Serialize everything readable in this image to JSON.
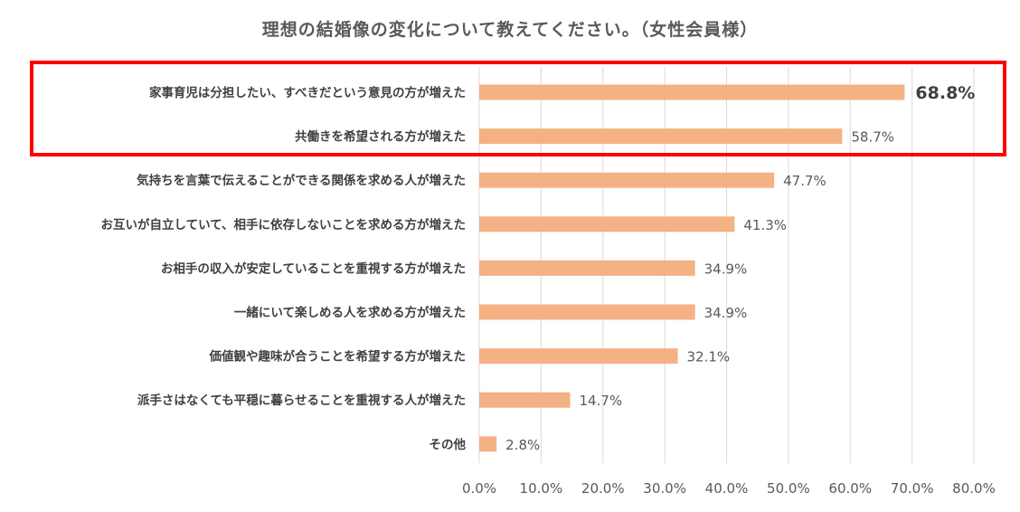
{
  "chart_data": {
    "type": "bar",
    "orientation": "horizontal",
    "title": "理想の結婚像の変化について教えてください。（女性会員様）",
    "categories": [
      "家事育児は分担したい、すべきだという意見の方が増えた",
      "共働きを希望される方が増えた",
      "気持ちを言葉で伝えることができる関係を求める人が増えた",
      "お互いが自立していて、相手に依存しないことを求める方が増えた",
      "お相手の収入が安定していることを重視する方が増えた",
      "一緒にいて楽しめる人を求める方が増えた",
      "価値観や趣味が合うことを希望する方が増えた",
      "派手さはなくても平穏に暮らせることを重視する人が増えた",
      "その他"
    ],
    "values": [
      68.8,
      58.7,
      47.7,
      41.3,
      34.9,
      34.9,
      32.1,
      14.7,
      2.8
    ],
    "data_labels": [
      "68.8%",
      "58.7%",
      "47.7%",
      "41.3%",
      "34.9%",
      "34.9%",
      "32.1%",
      "14.7%",
      "2.8%"
    ],
    "xlim": [
      0,
      80
    ],
    "x_ticks": [
      "0.0%",
      "10.0%",
      "20.0%",
      "30.0%",
      "40.0%",
      "50.0%",
      "60.0%",
      "70.0%",
      "80.0%"
    ],
    "grid": true,
    "bar_color": "#f4b183",
    "highlight_color": "#ff0000",
    "highlighted_categories": 2,
    "emphasized_label_index": 0
  }
}
